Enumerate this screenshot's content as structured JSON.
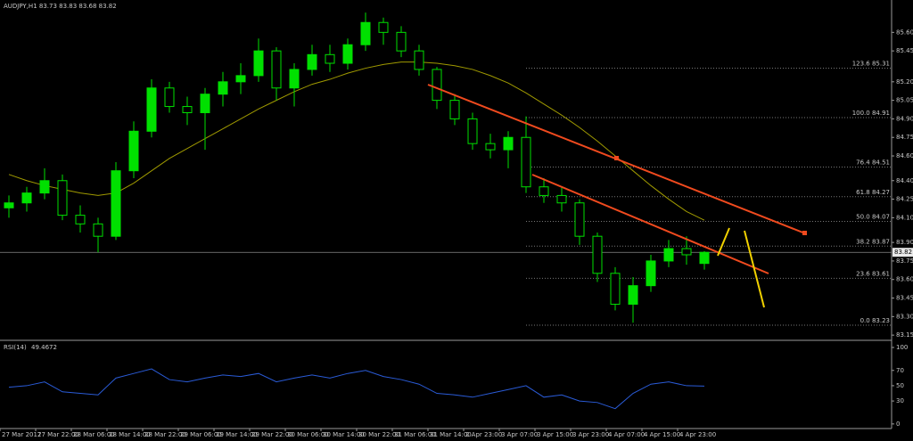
{
  "chart_data": {
    "type": "candlestick",
    "title": "AUDJPY,H1  83.73 83.83 83.68 83.82",
    "categories": [
      "27 Mar 2017",
      null,
      "27 Mar 22:00",
      null,
      "28 Mar 06:00",
      null,
      "28 Mar 14:00",
      null,
      "28 Mar 22:00",
      null,
      "29 Mar 06:00",
      null,
      "29 Mar 14:00",
      null,
      "29 Mar 22:00",
      null,
      "30 Mar 06:00",
      null,
      "30 Mar 14:00",
      null,
      "30 Mar 22:00",
      null,
      "31 Mar 06:00",
      null,
      "31 Mar 14:00",
      null,
      "2 Apr 23:00",
      null,
      "3 Apr 07:00",
      null,
      "3 Apr 15:00",
      null,
      "3 Apr 23:00",
      null,
      "4 Apr 07:00",
      null,
      "4 Apr 15:00",
      null,
      "4 Apr 23:00",
      null
    ],
    "open": [
      84.18,
      84.22,
      84.3,
      84.4,
      84.12,
      84.05,
      83.95,
      84.48,
      84.8,
      85.15,
      85.0,
      84.95,
      85.1,
      85.2,
      85.25,
      85.45,
      85.15,
      85.3,
      85.42,
      85.35,
      85.5,
      85.68,
      85.6,
      85.45,
      85.3,
      85.05,
      84.9,
      84.7,
      84.65,
      84.75,
      84.35,
      84.28,
      84.22,
      83.95,
      83.65,
      83.4,
      83.55,
      83.75,
      83.85,
      83.73
    ],
    "high": [
      84.28,
      84.35,
      84.5,
      84.45,
      84.2,
      84.1,
      84.55,
      84.88,
      85.22,
      85.2,
      85.08,
      85.15,
      85.28,
      85.35,
      85.55,
      85.48,
      85.35,
      85.5,
      85.5,
      85.55,
      85.76,
      85.72,
      85.65,
      85.5,
      85.32,
      85.1,
      84.95,
      84.78,
      84.8,
      84.92,
      84.42,
      84.35,
      84.25,
      83.98,
      83.7,
      83.62,
      83.8,
      83.92,
      83.95,
      83.83
    ],
    "low": [
      84.1,
      84.15,
      84.25,
      84.08,
      83.98,
      83.82,
      83.92,
      84.42,
      84.75,
      84.95,
      84.85,
      84.65,
      85.0,
      85.1,
      85.2,
      85.05,
      85.0,
      85.25,
      85.28,
      85.3,
      85.45,
      85.5,
      85.4,
      85.25,
      84.98,
      84.85,
      84.65,
      84.58,
      84.5,
      84.3,
      84.22,
      84.15,
      83.88,
      83.58,
      83.35,
      83.25,
      83.5,
      83.7,
      83.72,
      83.68
    ],
    "close": [
      84.22,
      84.3,
      84.4,
      84.12,
      84.05,
      83.95,
      84.48,
      84.8,
      85.15,
      85.0,
      84.95,
      85.1,
      85.2,
      85.25,
      85.45,
      85.15,
      85.3,
      85.42,
      85.35,
      85.5,
      85.68,
      85.6,
      85.45,
      85.3,
      85.05,
      84.9,
      84.7,
      84.65,
      84.75,
      84.35,
      84.28,
      84.22,
      83.95,
      83.65,
      83.4,
      83.55,
      83.75,
      83.85,
      83.8,
      83.82
    ],
    "candle_color": "#00e000",
    "moving_average": {
      "color": "#a09a00",
      "values": [
        84.45,
        84.4,
        84.36,
        84.33,
        84.3,
        84.28,
        84.3,
        84.38,
        84.48,
        84.58,
        84.66,
        84.74,
        84.82,
        84.9,
        84.98,
        85.05,
        85.12,
        85.18,
        85.22,
        85.27,
        85.31,
        85.34,
        85.36,
        85.36,
        85.35,
        85.33,
        85.3,
        85.25,
        85.19,
        85.11,
        85.02,
        84.93,
        84.83,
        84.72,
        84.6,
        84.48,
        84.36,
        84.25,
        84.15,
        84.08
      ]
    },
    "ylim": [
      83.115,
      85.862
    ],
    "yticks": [
      {
        "value": 85.6,
        "label": "85.60"
      },
      {
        "value": 85.45,
        "label": "85.45"
      },
      {
        "value": 85.2,
        "label": "85.20"
      },
      {
        "value": 85.05,
        "label": "85.05"
      },
      {
        "value": 84.9,
        "label": "84.90"
      },
      {
        "value": 84.75,
        "label": "84.75"
      },
      {
        "value": 84.6,
        "label": "84.60"
      },
      {
        "value": 84.4,
        "label": "84.40"
      },
      {
        "value": 84.25,
        "label": "84.25"
      },
      {
        "value": 84.1,
        "label": "84.10"
      },
      {
        "value": 83.9,
        "label": "83.90"
      },
      {
        "value": 83.75,
        "label": "83.75"
      },
      {
        "value": 83.6,
        "label": "83.60"
      },
      {
        "value": 83.45,
        "label": "83.45"
      },
      {
        "value": 83.3,
        "label": "83.30"
      },
      {
        "value": 83.15,
        "label": "83.15"
      }
    ],
    "last_price": 83.82,
    "fib_levels": [
      {
        "value": 85.31,
        "label": "123.6 85.31"
      },
      {
        "value": 84.91,
        "label": "100.0 84.91"
      },
      {
        "value": 84.51,
        "label": "76.4 84.51"
      },
      {
        "value": 84.27,
        "label": "61.8 84.27"
      },
      {
        "value": 84.07,
        "label": "50.0 84.07"
      },
      {
        "value": 83.87,
        "label": "38.2 83.87"
      },
      {
        "value": 83.61,
        "label": "23.6 83.61"
      },
      {
        "value": 83.23,
        "label": "0.0 83.23"
      }
    ],
    "rsi": {
      "name": "RSI(14)",
      "color": "#2a5bd7",
      "values": [
        48,
        50,
        55,
        42,
        40,
        38,
        60,
        66,
        72,
        58,
        55,
        60,
        64,
        62,
        66,
        55,
        60,
        64,
        60,
        66,
        70,
        62,
        58,
        52,
        40,
        38,
        35,
        40,
        45,
        50,
        35,
        38,
        30,
        28,
        20,
        40,
        52,
        55,
        50,
        49.4672
      ],
      "y2lim": [
        -6,
        107
      ],
      "y2ticks": [
        100,
        70,
        50,
        30,
        0
      ]
    }
  }
}
